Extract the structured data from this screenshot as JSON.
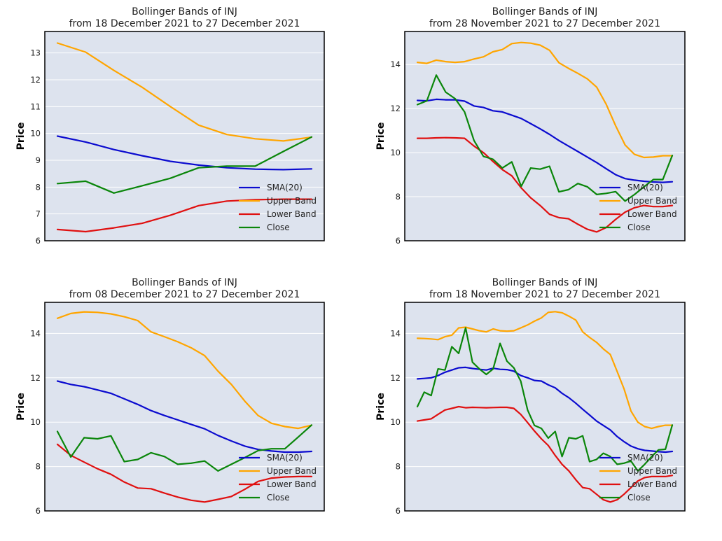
{
  "colors": {
    "sma": "#0b0bcf",
    "upper": "#ffa500",
    "lower": "#e01010",
    "close": "#0a860a"
  },
  "legend_labels": [
    "SMA(20)",
    "Upper Band",
    "Lower Band",
    "Close"
  ],
  "chart_data": [
    {
      "type": "line",
      "title_line1": "Bollinger Bands of INJ",
      "title_line2": "from 18 December 2021 to 27 December 2021",
      "ylabel": "Price",
      "xlabel": "",
      "ylim": [
        6,
        13.8
      ],
      "yticks": [
        6,
        7,
        8,
        9,
        10,
        11,
        12,
        13
      ],
      "legend_position": "lower-right",
      "series": [
        {
          "name": "SMA(20)",
          "values": [
            9.9,
            9.68,
            9.4,
            9.17,
            8.96,
            8.82,
            8.72,
            8.67,
            8.65,
            8.68
          ]
        },
        {
          "name": "Upper Band",
          "values": [
            13.37,
            13.03,
            12.35,
            11.72,
            11.0,
            10.31,
            9.96,
            9.8,
            9.72,
            9.86
          ]
        },
        {
          "name": "Lower Band",
          "values": [
            6.42,
            6.34,
            6.48,
            6.65,
            6.95,
            7.31,
            7.48,
            7.53,
            7.55,
            7.55
          ]
        },
        {
          "name": "Close",
          "values": [
            8.13,
            8.22,
            7.78,
            8.05,
            8.33,
            8.72,
            8.78,
            8.78,
            9.33,
            9.87
          ]
        }
      ]
    },
    {
      "type": "line",
      "title_line1": "Bollinger Bands of INJ",
      "title_line2": "from 28 November 2021 to 27 December 2021",
      "ylabel": "Price",
      "xlabel": "",
      "ylim": [
        6,
        15.5
      ],
      "yticks": [
        6,
        8,
        10,
        12,
        14
      ],
      "legend_position": "lower-right",
      "series": [
        {
          "name": "SMA(20)",
          "values": [
            12.37,
            12.35,
            12.42,
            12.4,
            12.4,
            12.34,
            12.12,
            12.05,
            11.9,
            11.85,
            11.7,
            11.55,
            11.32,
            11.08,
            10.83,
            10.55,
            10.3,
            10.05,
            9.8,
            9.55,
            9.27,
            9.0,
            8.82,
            8.75,
            8.7,
            8.67,
            8.65,
            8.68
          ]
        },
        {
          "name": "Upper Band",
          "values": [
            14.1,
            14.05,
            14.2,
            14.13,
            14.1,
            14.13,
            14.25,
            14.35,
            14.58,
            14.68,
            14.95,
            15.0,
            14.97,
            14.88,
            14.65,
            14.08,
            13.83,
            13.6,
            13.35,
            12.97,
            12.2,
            11.22,
            10.35,
            9.92,
            9.78,
            9.8,
            9.86,
            9.86
          ]
        },
        {
          "name": "Lower Band",
          "values": [
            10.65,
            10.65,
            10.67,
            10.68,
            10.67,
            10.65,
            10.3,
            10.0,
            9.6,
            9.23,
            8.95,
            8.4,
            7.95,
            7.6,
            7.2,
            7.05,
            7.0,
            6.75,
            6.52,
            6.4,
            6.6,
            6.97,
            7.3,
            7.5,
            7.6,
            7.55,
            7.55,
            7.6
          ]
        },
        {
          "name": "Close",
          "values": [
            12.18,
            12.35,
            13.52,
            12.75,
            12.45,
            11.85,
            10.55,
            9.83,
            9.7,
            9.3,
            9.58,
            8.47,
            9.3,
            9.25,
            9.38,
            8.22,
            8.32,
            8.6,
            8.45,
            8.1,
            8.15,
            8.23,
            7.8,
            8.1,
            8.45,
            8.78,
            8.78,
            9.87
          ]
        }
      ]
    },
    {
      "type": "line",
      "title_line1": "Bollinger Bands of INJ",
      "title_line2": "from 08 December 2021 to 27 December 2021",
      "ylabel": "Price",
      "xlabel": "",
      "ylim": [
        6,
        15.4
      ],
      "yticks": [
        6,
        8,
        10,
        12,
        14
      ],
      "legend_position": "lower-right",
      "series": [
        {
          "name": "SMA(20)",
          "values": [
            11.85,
            11.7,
            11.6,
            11.45,
            11.3,
            11.05,
            10.8,
            10.52,
            10.3,
            10.1,
            9.9,
            9.7,
            9.4,
            9.15,
            8.92,
            8.77,
            8.7,
            8.65,
            8.65,
            8.68
          ]
        },
        {
          "name": "Upper Band",
          "values": [
            14.68,
            14.9,
            14.97,
            14.95,
            14.88,
            14.75,
            14.58,
            14.07,
            13.85,
            13.62,
            13.35,
            13.0,
            12.3,
            11.7,
            10.95,
            10.3,
            9.95,
            9.8,
            9.72,
            9.86
          ]
        },
        {
          "name": "Lower Band",
          "values": [
            9.0,
            8.5,
            8.2,
            7.9,
            7.65,
            7.3,
            7.03,
            7.0,
            6.8,
            6.62,
            6.48,
            6.4,
            6.52,
            6.65,
            6.97,
            7.33,
            7.48,
            7.53,
            7.55,
            7.55
          ]
        },
        {
          "name": "Close",
          "values": [
            9.58,
            8.43,
            9.3,
            9.25,
            9.38,
            8.22,
            8.32,
            8.62,
            8.45,
            8.1,
            8.15,
            8.25,
            7.8,
            8.1,
            8.4,
            8.72,
            8.8,
            8.8,
            9.33,
            9.87
          ]
        }
      ]
    },
    {
      "type": "line",
      "title_line1": "Bollinger Bands of INJ",
      "title_line2": "from 18 November 2021 to 27 December 2021",
      "ylabel": "Price",
      "xlabel": "",
      "ylim": [
        6,
        15.4
      ],
      "yticks": [
        6,
        8,
        10,
        12,
        14
      ],
      "legend_position": "lower-right",
      "series": [
        {
          "name": "SMA(20)",
          "values": [
            11.95,
            11.97,
            12.0,
            12.1,
            12.25,
            12.35,
            12.45,
            12.47,
            12.42,
            12.38,
            12.35,
            12.43,
            12.38,
            12.37,
            12.3,
            12.1,
            12.0,
            11.88,
            11.85,
            11.68,
            11.55,
            11.3,
            11.1,
            10.85,
            10.58,
            10.32,
            10.05,
            9.85,
            9.65,
            9.35,
            9.12,
            8.92,
            8.8,
            8.73,
            8.7,
            8.67,
            8.65,
            8.68
          ]
        },
        {
          "name": "Upper Band",
          "values": [
            13.78,
            13.77,
            13.75,
            13.72,
            13.85,
            13.92,
            14.25,
            14.28,
            14.2,
            14.12,
            14.07,
            14.2,
            14.12,
            14.1,
            14.12,
            14.25,
            14.38,
            14.55,
            14.7,
            14.95,
            14.98,
            14.93,
            14.78,
            14.6,
            14.07,
            13.82,
            13.6,
            13.3,
            13.05,
            12.28,
            11.5,
            10.5,
            10.0,
            9.8,
            9.72,
            9.8,
            9.86,
            9.86
          ]
        },
        {
          "name": "Lower Band",
          "values": [
            10.05,
            10.1,
            10.15,
            10.35,
            10.55,
            10.62,
            10.7,
            10.65,
            10.67,
            10.66,
            10.65,
            10.66,
            10.67,
            10.67,
            10.62,
            10.35,
            9.98,
            9.6,
            9.25,
            8.95,
            8.5,
            8.1,
            7.8,
            7.4,
            7.05,
            7.0,
            6.75,
            6.5,
            6.4,
            6.5,
            6.75,
            7.05,
            7.35,
            7.5,
            7.55,
            7.55,
            7.55,
            7.6
          ]
        },
        {
          "name": "Close",
          "values": [
            10.7,
            11.35,
            11.2,
            12.4,
            12.35,
            13.4,
            13.1,
            14.25,
            12.7,
            12.4,
            12.15,
            12.4,
            13.55,
            12.75,
            12.45,
            11.85,
            10.55,
            9.85,
            9.72,
            9.28,
            9.58,
            8.45,
            9.3,
            9.25,
            9.38,
            8.22,
            8.32,
            8.6,
            8.45,
            8.1,
            8.15,
            8.25,
            7.8,
            8.1,
            8.45,
            8.75,
            8.78,
            9.87
          ]
        }
      ]
    }
  ]
}
